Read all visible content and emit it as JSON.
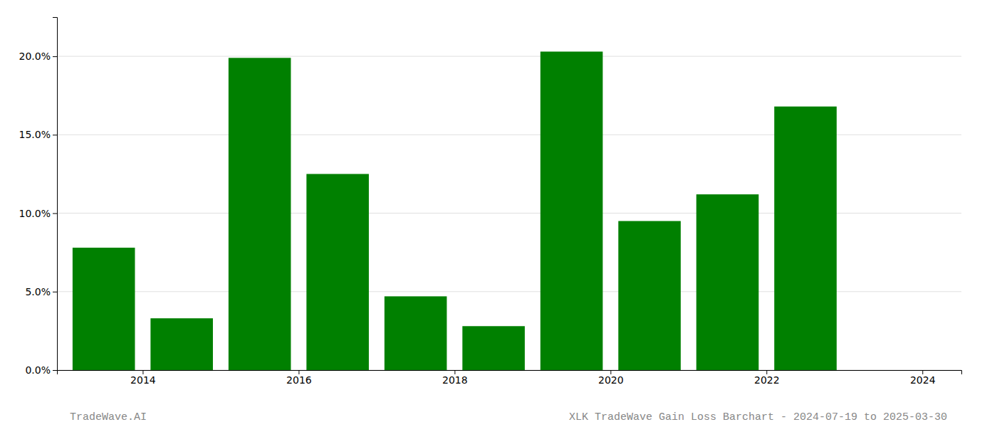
{
  "chart_data": {
    "type": "bar",
    "x": [
      2014,
      2015,
      2016,
      2017,
      2018,
      2019,
      2020,
      2021,
      2022,
      2023
    ],
    "values": [
      0.078,
      0.033,
      0.199,
      0.125,
      0.047,
      0.028,
      0.203,
      0.095,
      0.112,
      0.168
    ],
    "color": "#008000",
    "xlim": [
      2013.4,
      2025.0
    ],
    "xticks": [
      {
        "value": 2014.5,
        "label": "2014"
      },
      {
        "value": 2016.5,
        "label": "2016"
      },
      {
        "value": 2018.5,
        "label": "2018"
      },
      {
        "value": 2020.5,
        "label": "2020"
      },
      {
        "value": 2022.5,
        "label": "2022"
      },
      {
        "value": 2024.5,
        "label": "2024"
      }
    ],
    "ylim": [
      0,
      0.225
    ],
    "yticks": [
      {
        "value": 0.0,
        "label": "0.0%"
      },
      {
        "value": 0.05,
        "label": "5.0%"
      },
      {
        "value": 0.1,
        "label": "10.0%"
      },
      {
        "value": 0.15,
        "label": "15.0%"
      },
      {
        "value": 0.2,
        "label": "20.0%"
      }
    ],
    "grid": true,
    "annotations": [
      "TradeWave.AI",
      "XLK TradeWave Gain Loss Barchart - 2024-07-19 to 2025-03-30"
    ]
  }
}
